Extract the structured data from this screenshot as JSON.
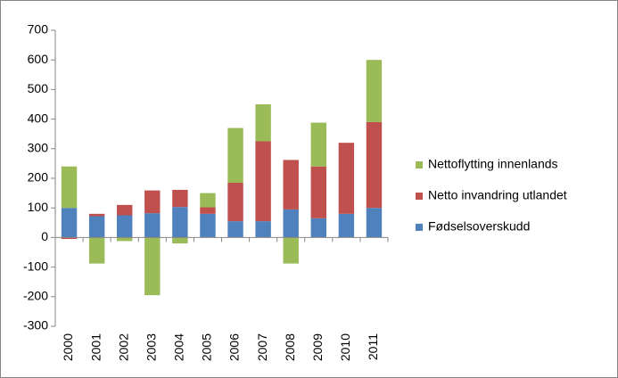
{
  "chart_data": {
    "type": "bar",
    "stacked": true,
    "categories": [
      "2000",
      "2001",
      "2002",
      "2003",
      "2004",
      "2005",
      "2006",
      "2007",
      "2008",
      "2009",
      "2010",
      "2011"
    ],
    "series": [
      {
        "name": "Fødselsoverskudd",
        "color": "#4f81bd",
        "values": [
          100,
          72,
          75,
          82,
          103,
          80,
          55,
          55,
          95,
          65,
          80,
          100
        ]
      },
      {
        "name": "Netto invandring utlandet",
        "color": "#c0504d",
        "values": [
          -5,
          8,
          35,
          77,
          58,
          22,
          130,
          270,
          167,
          175,
          240,
          290
        ]
      },
      {
        "name": "Nettoflytting innenlands",
        "color": "#9bbb59",
        "values": [
          140,
          -88,
          -12,
          -195,
          -20,
          48,
          185,
          125,
          -88,
          148,
          0,
          210
        ]
      }
    ],
    "ylim": [
      -300,
      700
    ],
    "yticks": [
      -300,
      -200,
      -100,
      0,
      100,
      200,
      300,
      400,
      500,
      600,
      700
    ],
    "grid": false,
    "legend": "right"
  }
}
